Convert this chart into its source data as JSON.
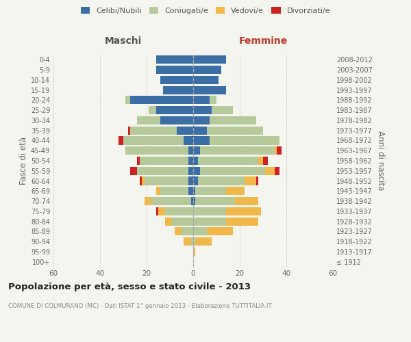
{
  "age_groups": [
    "100+",
    "95-99",
    "90-94",
    "85-89",
    "80-84",
    "75-79",
    "70-74",
    "65-69",
    "60-64",
    "55-59",
    "50-54",
    "45-49",
    "40-44",
    "35-39",
    "30-34",
    "25-29",
    "20-24",
    "15-19",
    "10-14",
    "5-9",
    "0-4"
  ],
  "birth_years": [
    "≤ 1912",
    "1913-1917",
    "1918-1922",
    "1923-1927",
    "1928-1932",
    "1933-1937",
    "1938-1942",
    "1943-1947",
    "1948-1952",
    "1953-1957",
    "1958-1962",
    "1963-1967",
    "1968-1972",
    "1973-1977",
    "1978-1982",
    "1983-1987",
    "1988-1992",
    "1993-1997",
    "1998-2002",
    "2003-2007",
    "2008-2012"
  ],
  "colors": {
    "celibi": "#3a6ea5",
    "coniugati": "#b5c99a",
    "vedovi": "#f0b84b",
    "divorziati": "#cc2222"
  },
  "males": {
    "celibi": [
      0,
      0,
      0,
      0,
      0,
      0,
      1,
      2,
      2,
      2,
      2,
      2,
      4,
      7,
      14,
      16,
      27,
      13,
      14,
      16,
      16
    ],
    "coniugati": [
      0,
      0,
      1,
      5,
      9,
      12,
      17,
      12,
      19,
      22,
      21,
      27,
      26,
      20,
      10,
      3,
      2,
      0,
      0,
      0,
      0
    ],
    "vedovi": [
      0,
      0,
      3,
      3,
      3,
      3,
      3,
      2,
      1,
      0,
      0,
      0,
      0,
      0,
      0,
      0,
      0,
      0,
      0,
      0,
      0
    ],
    "divorziati": [
      0,
      0,
      0,
      0,
      0,
      1,
      0,
      0,
      1,
      3,
      1,
      0,
      2,
      1,
      0,
      0,
      0,
      0,
      0,
      0,
      0
    ]
  },
  "females": {
    "nubili": [
      0,
      0,
      0,
      0,
      0,
      0,
      1,
      1,
      2,
      3,
      2,
      3,
      7,
      6,
      7,
      8,
      7,
      14,
      11,
      12,
      14
    ],
    "coniugate": [
      0,
      0,
      1,
      6,
      14,
      14,
      17,
      13,
      20,
      28,
      26,
      32,
      30,
      24,
      20,
      9,
      3,
      0,
      0,
      0,
      0
    ],
    "vedove": [
      0,
      1,
      7,
      11,
      14,
      15,
      10,
      8,
      5,
      4,
      2,
      1,
      0,
      0,
      0,
      0,
      0,
      0,
      0,
      0,
      0
    ],
    "divorziate": [
      0,
      0,
      0,
      0,
      0,
      0,
      0,
      0,
      1,
      2,
      2,
      2,
      0,
      0,
      0,
      0,
      0,
      0,
      0,
      0,
      0
    ]
  },
  "xlim": 60,
  "title": "Popolazione per età, sesso e stato civile - 2013",
  "subtitle": "COMUNE DI COLMURANO (MC) - Dati ISTAT 1° gennaio 2013 - Elaborazione TUTTITALIA.IT",
  "ylabel_left": "Fasce di età",
  "ylabel_right": "Anni di nascita",
  "xlabel_left": "Maschi",
  "xlabel_right": "Femmine",
  "bg_color": "#f5f5f0",
  "grid_color": "#cccccc"
}
